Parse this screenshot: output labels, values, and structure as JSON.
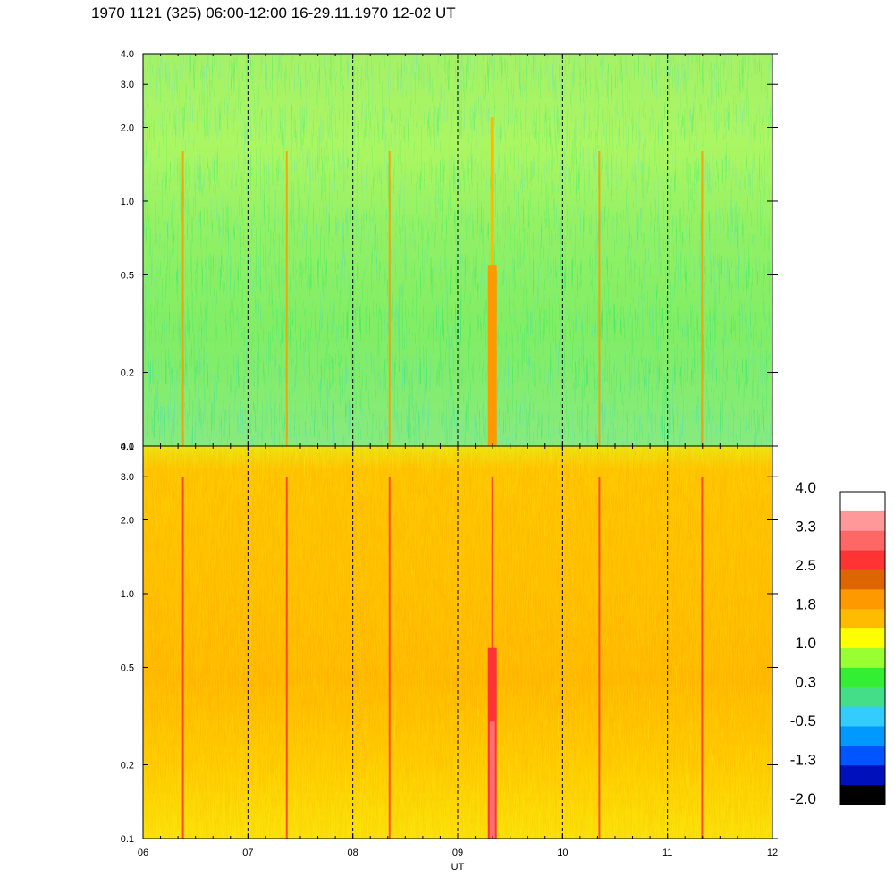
{
  "chart_data": [
    {
      "type": "heatmap",
      "title": "1970 1121 (325) 06:00-12:00 16-29.11.1970  12-02 UT",
      "xlabel": "UT",
      "ylabel": "",
      "x_ticks": [
        "06",
        "07",
        "08",
        "09",
        "10",
        "11",
        "12"
      ],
      "x_range": [
        6,
        12
      ],
      "y_scale": "log",
      "y_range": [
        0.1,
        4.0
      ],
      "y_ticks": [
        "4.0",
        "3.0",
        "2.0",
        "1.0",
        "0.5",
        "0.2",
        "0.1"
      ],
      "hour_dividers": [
        7,
        8,
        9,
        10,
        11
      ],
      "dominant_colors": [
        "#2ae83a",
        "#8cf23a",
        "#4ed88e",
        "#2ac8ea"
      ],
      "burst_times": [
        6.38,
        7.37,
        8.35,
        9.33,
        10.35,
        11.33
      ],
      "strong_burst_time": 9.33
    },
    {
      "type": "heatmap",
      "x_ticks": [
        "06",
        "07",
        "08",
        "09",
        "10",
        "11",
        "12"
      ],
      "x_range": [
        6,
        12
      ],
      "y_scale": "log",
      "y_range": [
        0.1,
        4.0
      ],
      "y_ticks": [
        "4.0",
        "3.0",
        "2.0",
        "1.0",
        "0.5",
        "0.2",
        "0.1"
      ],
      "hour_dividers": [
        7,
        8,
        9,
        10,
        11
      ],
      "dominant_colors": [
        "#ffbb00",
        "#ff9900",
        "#ffff00",
        "#8cf23a"
      ],
      "burst_times": [
        6.38,
        7.37,
        8.35,
        9.33,
        10.35,
        11.33
      ],
      "strong_burst_time": 9.33
    }
  ],
  "colorbar": {
    "labels": [
      "4.0",
      "3.3",
      "2.5",
      "1.8",
      "1.0",
      "0.3",
      "-0.5",
      "-1.3",
      "-2.0"
    ],
    "colors": [
      "#ffffff",
      "#ff9999",
      "#ff6666",
      "#ff3333",
      "#dd6600",
      "#ff9900",
      "#ffbb00",
      "#ffff00",
      "#99ff33",
      "#33ee33",
      "#44dd88",
      "#33ccff",
      "#0099ff",
      "#0055ff",
      "#0011bb",
      "#000000"
    ]
  }
}
